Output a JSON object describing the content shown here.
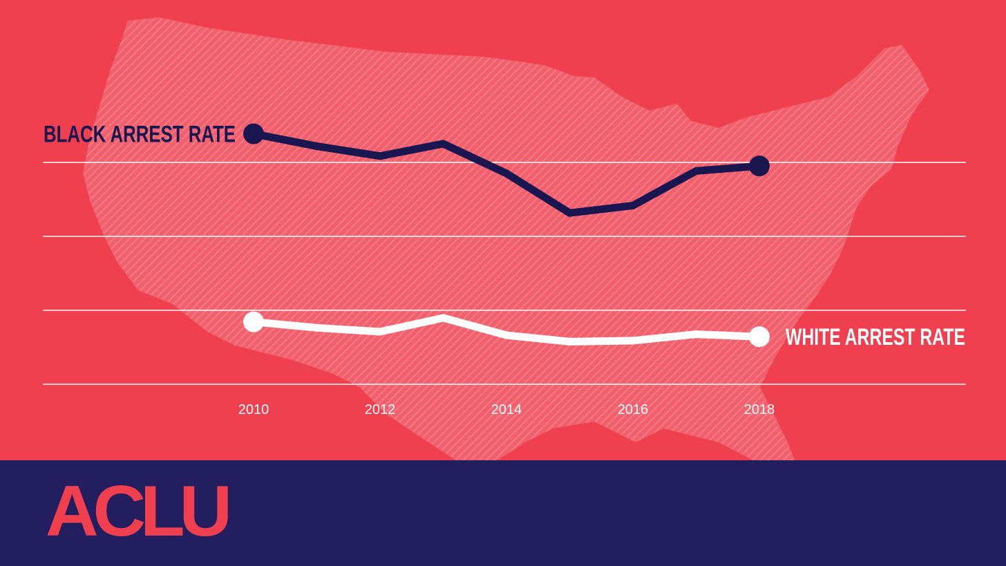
{
  "colors": {
    "background": "#f0404f",
    "footer": "#221e60",
    "black_series": "#1a1650",
    "white_series": "#ffffff",
    "logo": "#f0404f",
    "grid": "#ffffff"
  },
  "chart_data": {
    "type": "line",
    "title": "",
    "xlabel": "",
    "ylabel": "",
    "x": [
      2010,
      2011,
      2012,
      2013,
      2014,
      2015,
      2016,
      2017,
      2018
    ],
    "x_ticks": [
      "2010",
      "2012",
      "2014",
      "2016",
      "2018"
    ],
    "y_axis_visible": false,
    "grid": "horizontal",
    "gridline_count": 4,
    "background_image": "us-map-silhouette",
    "series": [
      {
        "name": "BLACK ARREST RATE",
        "color": "#1a1650",
        "label_position": "left-of-start",
        "values": [
          86,
          83.5,
          81.5,
          84,
          78,
          70,
          71.5,
          78.5,
          79.5
        ]
      },
      {
        "name": "WHITE ARREST RATE",
        "color": "#ffffff",
        "label_position": "right-of-end",
        "values": [
          48,
          46.8,
          46,
          48.8,
          45.3,
          44,
          44.2,
          45.5,
          45
        ]
      }
    ]
  },
  "footer": {
    "logo_text": "ACLU"
  }
}
